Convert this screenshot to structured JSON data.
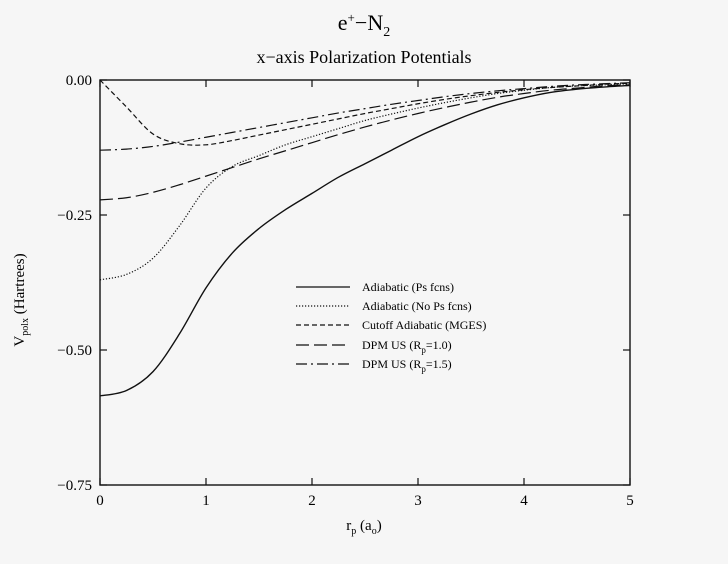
{
  "chart_data": {
    "type": "line",
    "title": {
      "base": "e",
      "sup": "+",
      "dash": "−",
      "species": "N",
      "species_sub": "2"
    },
    "subtitle": "x−axis Polarization Potentials",
    "xlabel": {
      "base": "r",
      "sub": "p",
      "rest_open": " (a",
      "rest_sub": "o",
      "rest_close": ")"
    },
    "ylabel": {
      "base": "V",
      "sub": "polx",
      "rest": " (Hartrees)"
    },
    "xlim": [
      0,
      5
    ],
    "ylim": [
      -0.75,
      0.0
    ],
    "x_ticks": [
      "0",
      "1",
      "2",
      "3",
      "4",
      "5"
    ],
    "x_tick_values": [
      0,
      1,
      2,
      3,
      4,
      5
    ],
    "y_ticks": [
      "0.00",
      "−0.25",
      "−0.50",
      "−0.75"
    ],
    "y_tick_values": [
      0.0,
      -0.25,
      -0.5,
      -0.75
    ],
    "x": [
      0,
      0.25,
      0.5,
      0.75,
      1.0,
      1.25,
      1.5,
      1.75,
      2.0,
      2.25,
      2.5,
      2.75,
      3.0,
      3.25,
      3.5,
      3.75,
      4.0,
      4.25,
      4.5,
      4.75,
      5.0
    ],
    "series": [
      {
        "name": "Adiabatic (Ps fcns)",
        "dash": "solid",
        "values": [
          -0.585,
          -0.575,
          -0.54,
          -0.47,
          -0.385,
          -0.32,
          -0.275,
          -0.24,
          -0.21,
          -0.18,
          -0.155,
          -0.13,
          -0.105,
          -0.083,
          -0.063,
          -0.046,
          -0.033,
          -0.023,
          -0.017,
          -0.013,
          -0.01
        ]
      },
      {
        "name": "Adiabatic (No Ps fcns)",
        "dash": "dotted",
        "values": [
          -0.37,
          -0.36,
          -0.33,
          -0.27,
          -0.2,
          -0.16,
          -0.14,
          -0.12,
          -0.105,
          -0.09,
          -0.075,
          -0.063,
          -0.052,
          -0.042,
          -0.033,
          -0.025,
          -0.019,
          -0.014,
          -0.011,
          -0.009,
          -0.007
        ]
      },
      {
        "name": "Cutoff Adiabatic (MGES)",
        "dash": "short",
        "values": [
          0.0,
          -0.05,
          -0.1,
          -0.118,
          -0.12,
          -0.112,
          -0.102,
          -0.092,
          -0.082,
          -0.072,
          -0.062,
          -0.053,
          -0.044,
          -0.036,
          -0.029,
          -0.023,
          -0.018,
          -0.014,
          -0.011,
          -0.008,
          -0.006
        ]
      },
      {
        "name": "DPM US (R_p=1.0)",
        "dash": "long",
        "values": [
          -0.222,
          -0.218,
          -0.208,
          -0.194,
          -0.178,
          -0.162,
          -0.146,
          -0.131,
          -0.116,
          -0.101,
          -0.087,
          -0.074,
          -0.062,
          -0.051,
          -0.041,
          -0.032,
          -0.025,
          -0.019,
          -0.015,
          -0.011,
          -0.009
        ]
      },
      {
        "name": "DPM US (R_p=1.5)",
        "dash": "dashdot",
        "values": [
          -0.13,
          -0.128,
          -0.123,
          -0.115,
          -0.106,
          -0.097,
          -0.088,
          -0.079,
          -0.07,
          -0.061,
          -0.053,
          -0.045,
          -0.038,
          -0.031,
          -0.025,
          -0.02,
          -0.016,
          -0.012,
          -0.009,
          -0.007,
          -0.005
        ]
      }
    ],
    "legend": [
      {
        "label": "Adiabatic (Ps fcns)",
        "dash": "solid"
      },
      {
        "label": "Adiabatic (No Ps fcns)",
        "dash": "dotted"
      },
      {
        "label": "Cutoff Adiabatic (MGES)",
        "dash": "short"
      },
      {
        "pre": "DPM US (R",
        "sub": "p",
        "post": "=1.0)",
        "dash": "long"
      },
      {
        "pre": "DPM US (R",
        "sub": "p",
        "post": "=1.5)",
        "dash": "dashdot"
      }
    ],
    "legend_position": "center-right",
    "grid": false,
    "line_color": "#111111"
  }
}
